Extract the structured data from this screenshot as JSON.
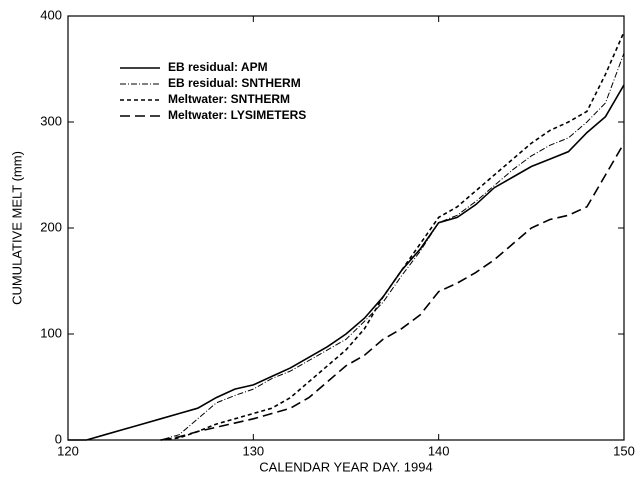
{
  "chart_data": {
    "type": "line",
    "x_label": "CALENDAR YEAR DAY. 1994",
    "y_label": "CUMULATIVE MELT (mm)",
    "xlim": [
      120,
      150
    ],
    "xticks": [
      120,
      130,
      140,
      150
    ],
    "ylim": [
      0,
      400
    ],
    "yticks": [
      0,
      100,
      200,
      300,
      400
    ],
    "legend": "top-left",
    "series": [
      {
        "name": "EB residual: APM",
        "color": "#000000",
        "dash": "none",
        "x": [
          120,
          121,
          122,
          123,
          124,
          125,
          126,
          127,
          128,
          129,
          130,
          131,
          132,
          133,
          134,
          135,
          136,
          137,
          138,
          139,
          140,
          141,
          142,
          143,
          144,
          145,
          146,
          147,
          148,
          149,
          150
        ],
        "values": [
          0,
          0,
          5,
          10,
          15,
          20,
          25,
          30,
          40,
          48,
          52,
          60,
          68,
          78,
          88,
          100,
          115,
          135,
          160,
          180,
          205,
          210,
          222,
          238,
          248,
          258,
          265,
          272,
          290,
          305,
          335
        ]
      },
      {
        "name": "EB residual: SNTHERM",
        "color": "#000000",
        "dash": "6,2,1,2",
        "x": [
          121,
          125,
          126,
          127,
          128,
          129,
          130,
          131,
          132,
          133,
          134,
          135,
          136,
          137,
          138,
          139,
          140,
          141,
          142,
          143,
          144,
          145,
          146,
          147,
          148,
          149,
          150
        ],
        "values": [
          0,
          0,
          5,
          20,
          35,
          42,
          48,
          58,
          65,
          75,
          85,
          95,
          112,
          130,
          155,
          178,
          205,
          212,
          225,
          240,
          255,
          268,
          278,
          285,
          300,
          318,
          365
        ]
      },
      {
        "name": "Meltwater: SNTHERM",
        "color": "#000000",
        "dash": "4,3",
        "x": [
          125,
          126,
          127,
          128,
          129,
          130,
          131,
          132,
          133,
          134,
          135,
          136,
          137,
          138,
          139,
          140,
          141,
          142,
          143,
          144,
          145,
          146,
          147,
          148,
          149,
          150
        ],
        "values": [
          0,
          2,
          8,
          15,
          20,
          25,
          30,
          40,
          55,
          70,
          85,
          105,
          135,
          160,
          185,
          210,
          220,
          235,
          250,
          265,
          280,
          292,
          300,
          310,
          345,
          385
        ]
      },
      {
        "name": "Meltwater: LYSIMETERS",
        "color": "#000000",
        "dash": "10,5",
        "x": [
          125,
          126,
          127,
          128,
          129,
          130,
          131,
          132,
          133,
          134,
          135,
          136,
          137,
          138,
          139,
          140,
          141,
          142,
          143,
          144,
          145,
          146,
          147,
          148,
          149,
          150
        ],
        "values": [
          0,
          3,
          8,
          12,
          16,
          20,
          25,
          30,
          40,
          55,
          70,
          80,
          95,
          105,
          118,
          140,
          148,
          158,
          170,
          185,
          200,
          208,
          212,
          220,
          250,
          280
        ]
      }
    ]
  }
}
